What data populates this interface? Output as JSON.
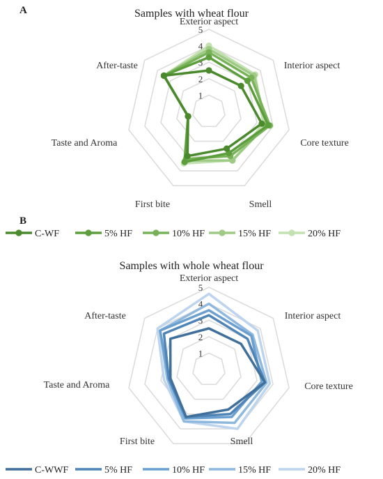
{
  "figure": {
    "panels": [
      {
        "letter": "A"
      },
      {
        "letter": "B"
      }
    ]
  },
  "chart_data": [
    {
      "type": "radar",
      "title": "Samples with wheat flour",
      "axes": [
        "Exterior aspect",
        "Interior aspect",
        "Core texture",
        "Smell",
        "First bite",
        "Taste and Aroma",
        "After-taste"
      ],
      "rlim": [
        0,
        5
      ],
      "ticks": [
        "1",
        "2",
        "3",
        "4",
        "5"
      ],
      "grid": true,
      "legend_position": "bottom",
      "series": [
        {
          "name": "C-WF",
          "color": "#4a8a2c",
          "values": [
            2.5,
            2.5,
            3.3,
            2.5,
            3.0,
            1.3,
            3.5
          ]
        },
        {
          "name": "5% HF",
          "color": "#5c9e3c",
          "values": [
            3.3,
            3.0,
            3.7,
            2.8,
            3.4,
            1.3,
            3.5
          ]
        },
        {
          "name": "10% HF",
          "color": "#78b258",
          "values": [
            3.6,
            3.3,
            3.8,
            3.0,
            3.2,
            1.3,
            3.5
          ]
        },
        {
          "name": "15% HF",
          "color": "#9fca85",
          "values": [
            3.8,
            3.5,
            3.6,
            3.3,
            3.3,
            1.3,
            3.5
          ]
        },
        {
          "name": "20% HF",
          "color": "#c2e0b0",
          "values": [
            4.0,
            3.6,
            3.4,
            3.3,
            3.5,
            1.3,
            3.5
          ]
        }
      ]
    },
    {
      "type": "radar",
      "title": "Samples with whole wheat flour",
      "axes": [
        "Exterior aspect",
        "Interior aspect",
        "Core texture",
        "Smell",
        "First bite",
        "Taste and Aroma",
        "After-taste"
      ],
      "rlim": [
        0,
        5
      ],
      "ticks": [
        "1",
        "2",
        "3",
        "4",
        "5"
      ],
      "grid": true,
      "legend_position": "bottom",
      "series": [
        {
          "name": "C-WWF",
          "color": "#3f6f9a",
          "values": [
            2.5,
            2.5,
            3.5,
            2.7,
            3.2,
            2.4,
            3.0
          ]
        },
        {
          "name": "5% HF",
          "color": "#4f84b6",
          "values": [
            3.3,
            3.0,
            3.5,
            3.0,
            3.2,
            2.5,
            3.5
          ]
        },
        {
          "name": "10% HF",
          "color": "#6a9fd0",
          "values": [
            3.6,
            3.3,
            3.3,
            3.2,
            3.3,
            2.5,
            3.8
          ]
        },
        {
          "name": "15% HF",
          "color": "#8fb8de",
          "values": [
            4.0,
            3.4,
            3.6,
            3.6,
            3.5,
            2.6,
            3.8
          ]
        },
        {
          "name": "20% HF",
          "color": "#bcd4ee",
          "values": [
            4.6,
            3.8,
            3.8,
            4.0,
            3.5,
            2.8,
            4.0
          ]
        }
      ]
    }
  ]
}
